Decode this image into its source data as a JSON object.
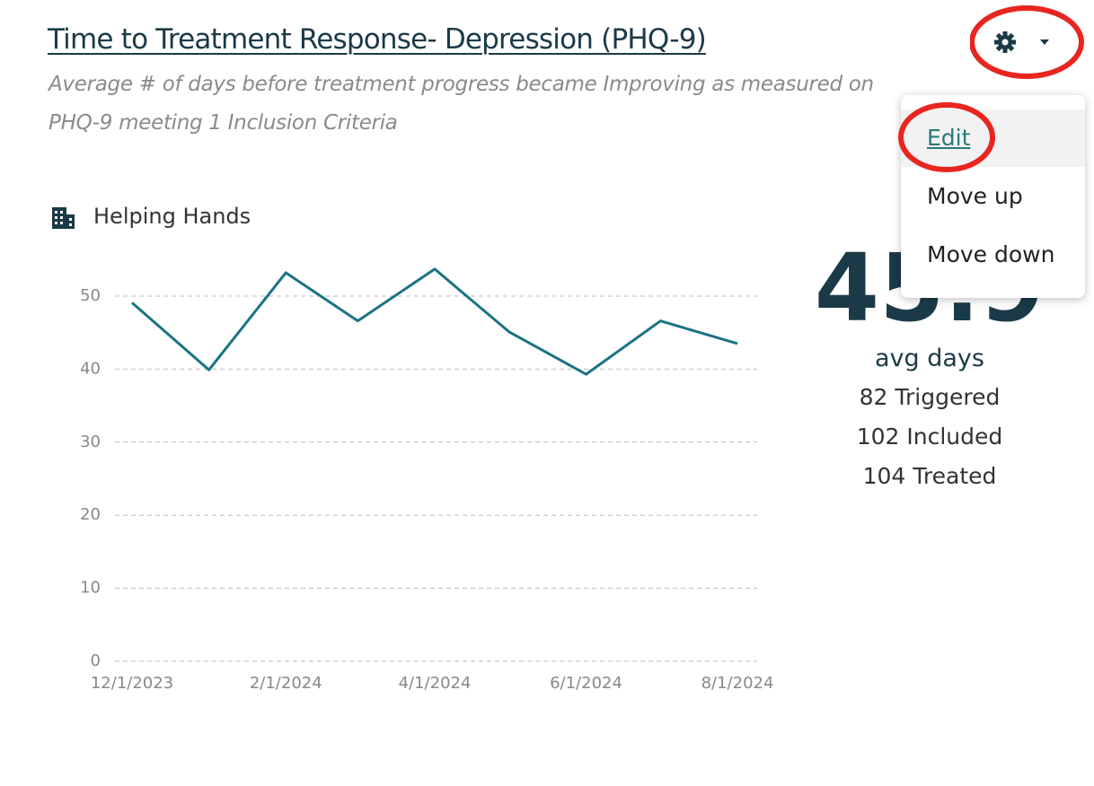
{
  "header": {
    "title": "Time to Treatment Response- Depression (PHQ-9)",
    "subtitle": [
      "Average # of days before treatment progress became Improving as measured on",
      "PHQ-9 meeting 1 Inclusion Criteria"
    ]
  },
  "organization": "Helping Hands",
  "chart": {
    "type": "line",
    "color": "#1b7384",
    "x": [
      "12/1/2023",
      "1/1/2024",
      "2/1/2024",
      "3/1/2024",
      "4/1/2024",
      "5/1/2024",
      "6/1/2024",
      "7/1/2024",
      "8/1/2024"
    ],
    "values": [
      49.1,
      39.9,
      53.2,
      46.6,
      53.7,
      45.1,
      39.3,
      46.6,
      43.5
    ],
    "xlim": [
      "12/1/2023",
      "8/1/2024"
    ],
    "xticks": [
      "12/1/2023",
      "2/1/2024",
      "4/1/2024",
      "6/1/2024",
      "8/1/2024"
    ],
    "ylim": [
      0,
      50
    ],
    "yticks": [
      0,
      10,
      20,
      30,
      40,
      50
    ],
    "grid": true
  },
  "summary": {
    "value": "45.9",
    "unit": "avg days",
    "stats": [
      "82 Triggered",
      "102 Included",
      "104 Treated"
    ]
  },
  "menu": {
    "items": [
      "Edit",
      "Move up",
      "Move down"
    ]
  }
}
